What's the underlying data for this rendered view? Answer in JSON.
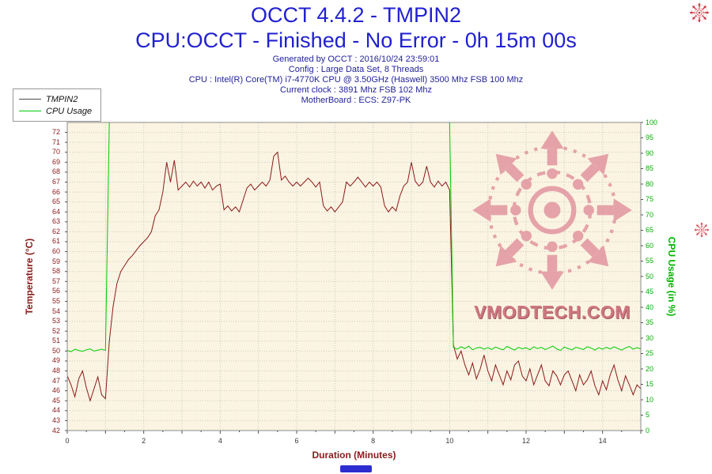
{
  "header": {
    "title": "OCCT 4.4.2 - TMPIN2",
    "subtitle": "CPU:OCCT - Finished - No Error - 0h 15m 00s",
    "info_lines": [
      "Generated by OCCT : 2016/10/24 23:59:01",
      "Config : Large Data Set, 8 Threads",
      "CPU : Intel(R) Core(TM) i7-4770K CPU @ 3.50GHz (Haswell) 3500 Mhz FSB 100 Mhz",
      "Current clock : 3891 Mhz FSB 102 Mhz",
      "MotherBoard : ECS: Z97-PK"
    ]
  },
  "legend": {
    "items": [
      {
        "label": "TMPIN2",
        "color": "#4a4a4a"
      },
      {
        "label": "CPU Usage",
        "color": "#00cc00"
      }
    ]
  },
  "watermark": {
    "text": "VMODTECH.COM"
  },
  "chart_data": {
    "type": "line",
    "title": "OCCT 4.4.2 - TMPIN2",
    "xlabel": "Duration (Minutes)",
    "xlim": [
      0,
      15
    ],
    "x_ticks": [
      0,
      2,
      4,
      6,
      8,
      10,
      12,
      14
    ],
    "grid": true,
    "legend_position": "top-left",
    "plot_bg": "#fbf4e2",
    "grid_color": "#c9c9c9",
    "x_label_color": "#3a3a3a",
    "axes": {
      "left": {
        "label": "Temperature (°C)",
        "color": "#8b1a1a",
        "lim": [
          42,
          73
        ],
        "tick_step": 1
      },
      "right": {
        "label": "CPU Usage (in %)",
        "color": "#00b300",
        "lim": [
          0,
          100
        ],
        "tick_step": 5
      }
    },
    "series": [
      {
        "name": "TMPIN2",
        "axis": "left",
        "color": "#8b1a1a",
        "x_start": 0,
        "x_step": 0.1,
        "values": [
          47.5,
          46.6,
          45.4,
          47.2,
          48,
          46.3,
          45,
          46.2,
          47.4,
          45.6,
          45.2,
          51,
          54.5,
          56.8,
          58,
          58.6,
          59.2,
          59.6,
          60.1,
          60.6,
          61,
          61.4,
          62,
          63.6,
          64.2,
          66,
          69,
          67,
          69.2,
          66.2,
          66.6,
          67,
          66.5,
          67.1,
          66.6,
          67,
          66.4,
          67,
          66.2,
          66.6,
          66.8,
          64.2,
          64.6,
          64.1,
          64.5,
          64,
          65.2,
          66.4,
          66.8,
          66.2,
          66.6,
          67,
          66.6,
          67.2,
          69.6,
          70,
          67.2,
          67.6,
          67,
          66.6,
          67,
          66.6,
          67,
          67.4,
          67,
          66.5,
          67,
          64.6,
          64.1,
          64.5,
          64,
          64.5,
          65,
          67,
          66.6,
          67,
          67.5,
          67,
          66.5,
          67,
          66.6,
          67,
          66.5,
          64.6,
          64,
          64.5,
          64.1,
          65.6,
          66.6,
          67,
          69,
          67.1,
          66.6,
          67,
          68.6,
          67,
          66.5,
          67.1,
          66.6,
          67,
          66.2,
          50.6,
          49.2,
          50,
          48.6,
          47.6,
          48.8,
          47.2,
          48.2,
          49.6,
          48,
          47,
          48.6,
          47.6,
          46.6,
          48,
          47.1,
          48.6,
          49,
          47.5,
          47,
          48.2,
          46.6,
          47.6,
          48.6,
          47,
          46.5,
          48,
          47.5,
          46.6,
          47.6,
          48,
          47,
          46,
          47.6,
          46.6,
          47.1,
          48,
          46.5,
          45.6,
          47,
          46.1,
          47.6,
          48.6,
          47.1,
          46,
          47.5,
          46.6,
          45.6,
          46.6,
          46.2
        ]
      },
      {
        "name": "CPU Usage",
        "axis": "right",
        "color": "#00cc00",
        "x_start": 0,
        "x_step": 0.1,
        "values": [
          26,
          25.6,
          26.4,
          26,
          25.7,
          26.2,
          26.5,
          25.8,
          26.1,
          26.4,
          26,
          100,
          100,
          100,
          100,
          100,
          100,
          100,
          100,
          100,
          100,
          100,
          100,
          100,
          100,
          100,
          100,
          100,
          100,
          100,
          100,
          100,
          100,
          100,
          100,
          100,
          100,
          100,
          100,
          100,
          100,
          100,
          100,
          100,
          100,
          100,
          100,
          100,
          100,
          100,
          100,
          100,
          100,
          100,
          100,
          100,
          100,
          100,
          100,
          100,
          100,
          100,
          100,
          100,
          100,
          100,
          100,
          100,
          100,
          100,
          100,
          100,
          100,
          100,
          100,
          100,
          100,
          100,
          100,
          100,
          100,
          100,
          100,
          100,
          100,
          100,
          100,
          100,
          100,
          100,
          100,
          100,
          100,
          100,
          100,
          100,
          100,
          100,
          100,
          100,
          100,
          27,
          26.4,
          27.2,
          26.6,
          27.4,
          26.2,
          26.8,
          27,
          26.4,
          26.9,
          26.3,
          27.1,
          26.6,
          26.2,
          27.3,
          26.7,
          26.1,
          27,
          26.5,
          26.9,
          26.2,
          27.2,
          26.6,
          27,
          26.3,
          26.8,
          27.4,
          26.5,
          26,
          27.1,
          26.6,
          26.2,
          27,
          26.7,
          26.3,
          27.2,
          26.8,
          26.1,
          26.9,
          26.4,
          27,
          26.5,
          27.2,
          26.6,
          26.1,
          26.8,
          27.3,
          26.4,
          26.9,
          26.5
        ]
      }
    ]
  }
}
